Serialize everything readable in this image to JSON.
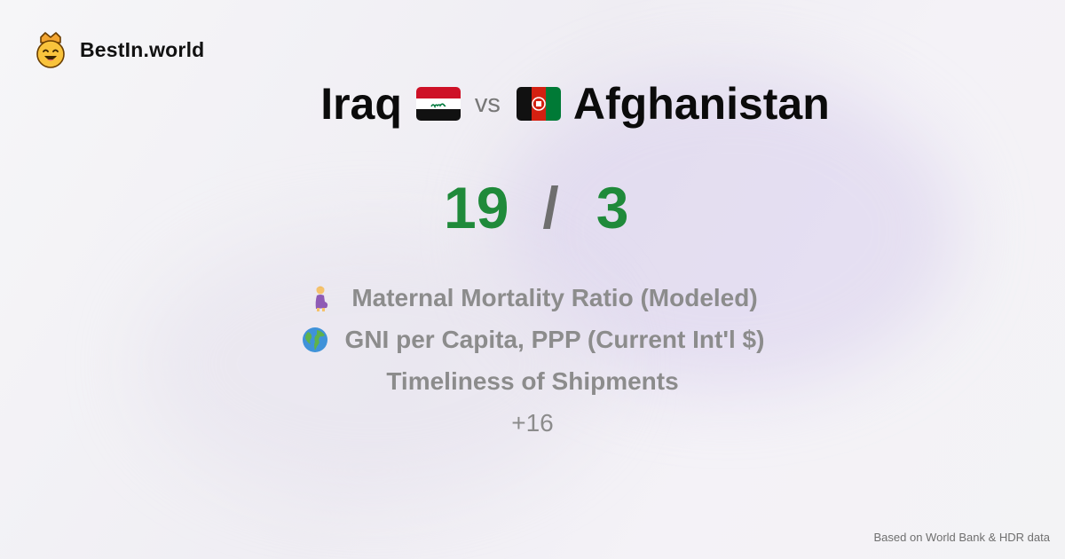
{
  "brand": {
    "name": "BestIn.world",
    "logo_icon": "crown-smiley-icon"
  },
  "comparison": {
    "left": {
      "name": "Iraq",
      "flag_icon": "iraq-flag-icon",
      "score": "19"
    },
    "vs_label": "vs",
    "right": {
      "name": "Afghanistan",
      "flag_icon": "afghanistan-flag-icon",
      "score": "3"
    },
    "separator": "/"
  },
  "metrics": [
    {
      "label": "Maternal Mortality Ratio (Modeled)",
      "icon": "pregnant-woman-icon"
    },
    {
      "label": "GNI per Capita, PPP (Current Int'l $)",
      "icon": "globe-icon"
    },
    {
      "label": "Timeliness of Shipments",
      "icon": ""
    }
  ],
  "more_label": "+16",
  "footer": {
    "source": "Based on World Bank & HDR data"
  },
  "colors": {
    "score": "#1f8a3a",
    "muted": "#8c8c8c",
    "title": "#0b0b0b"
  }
}
